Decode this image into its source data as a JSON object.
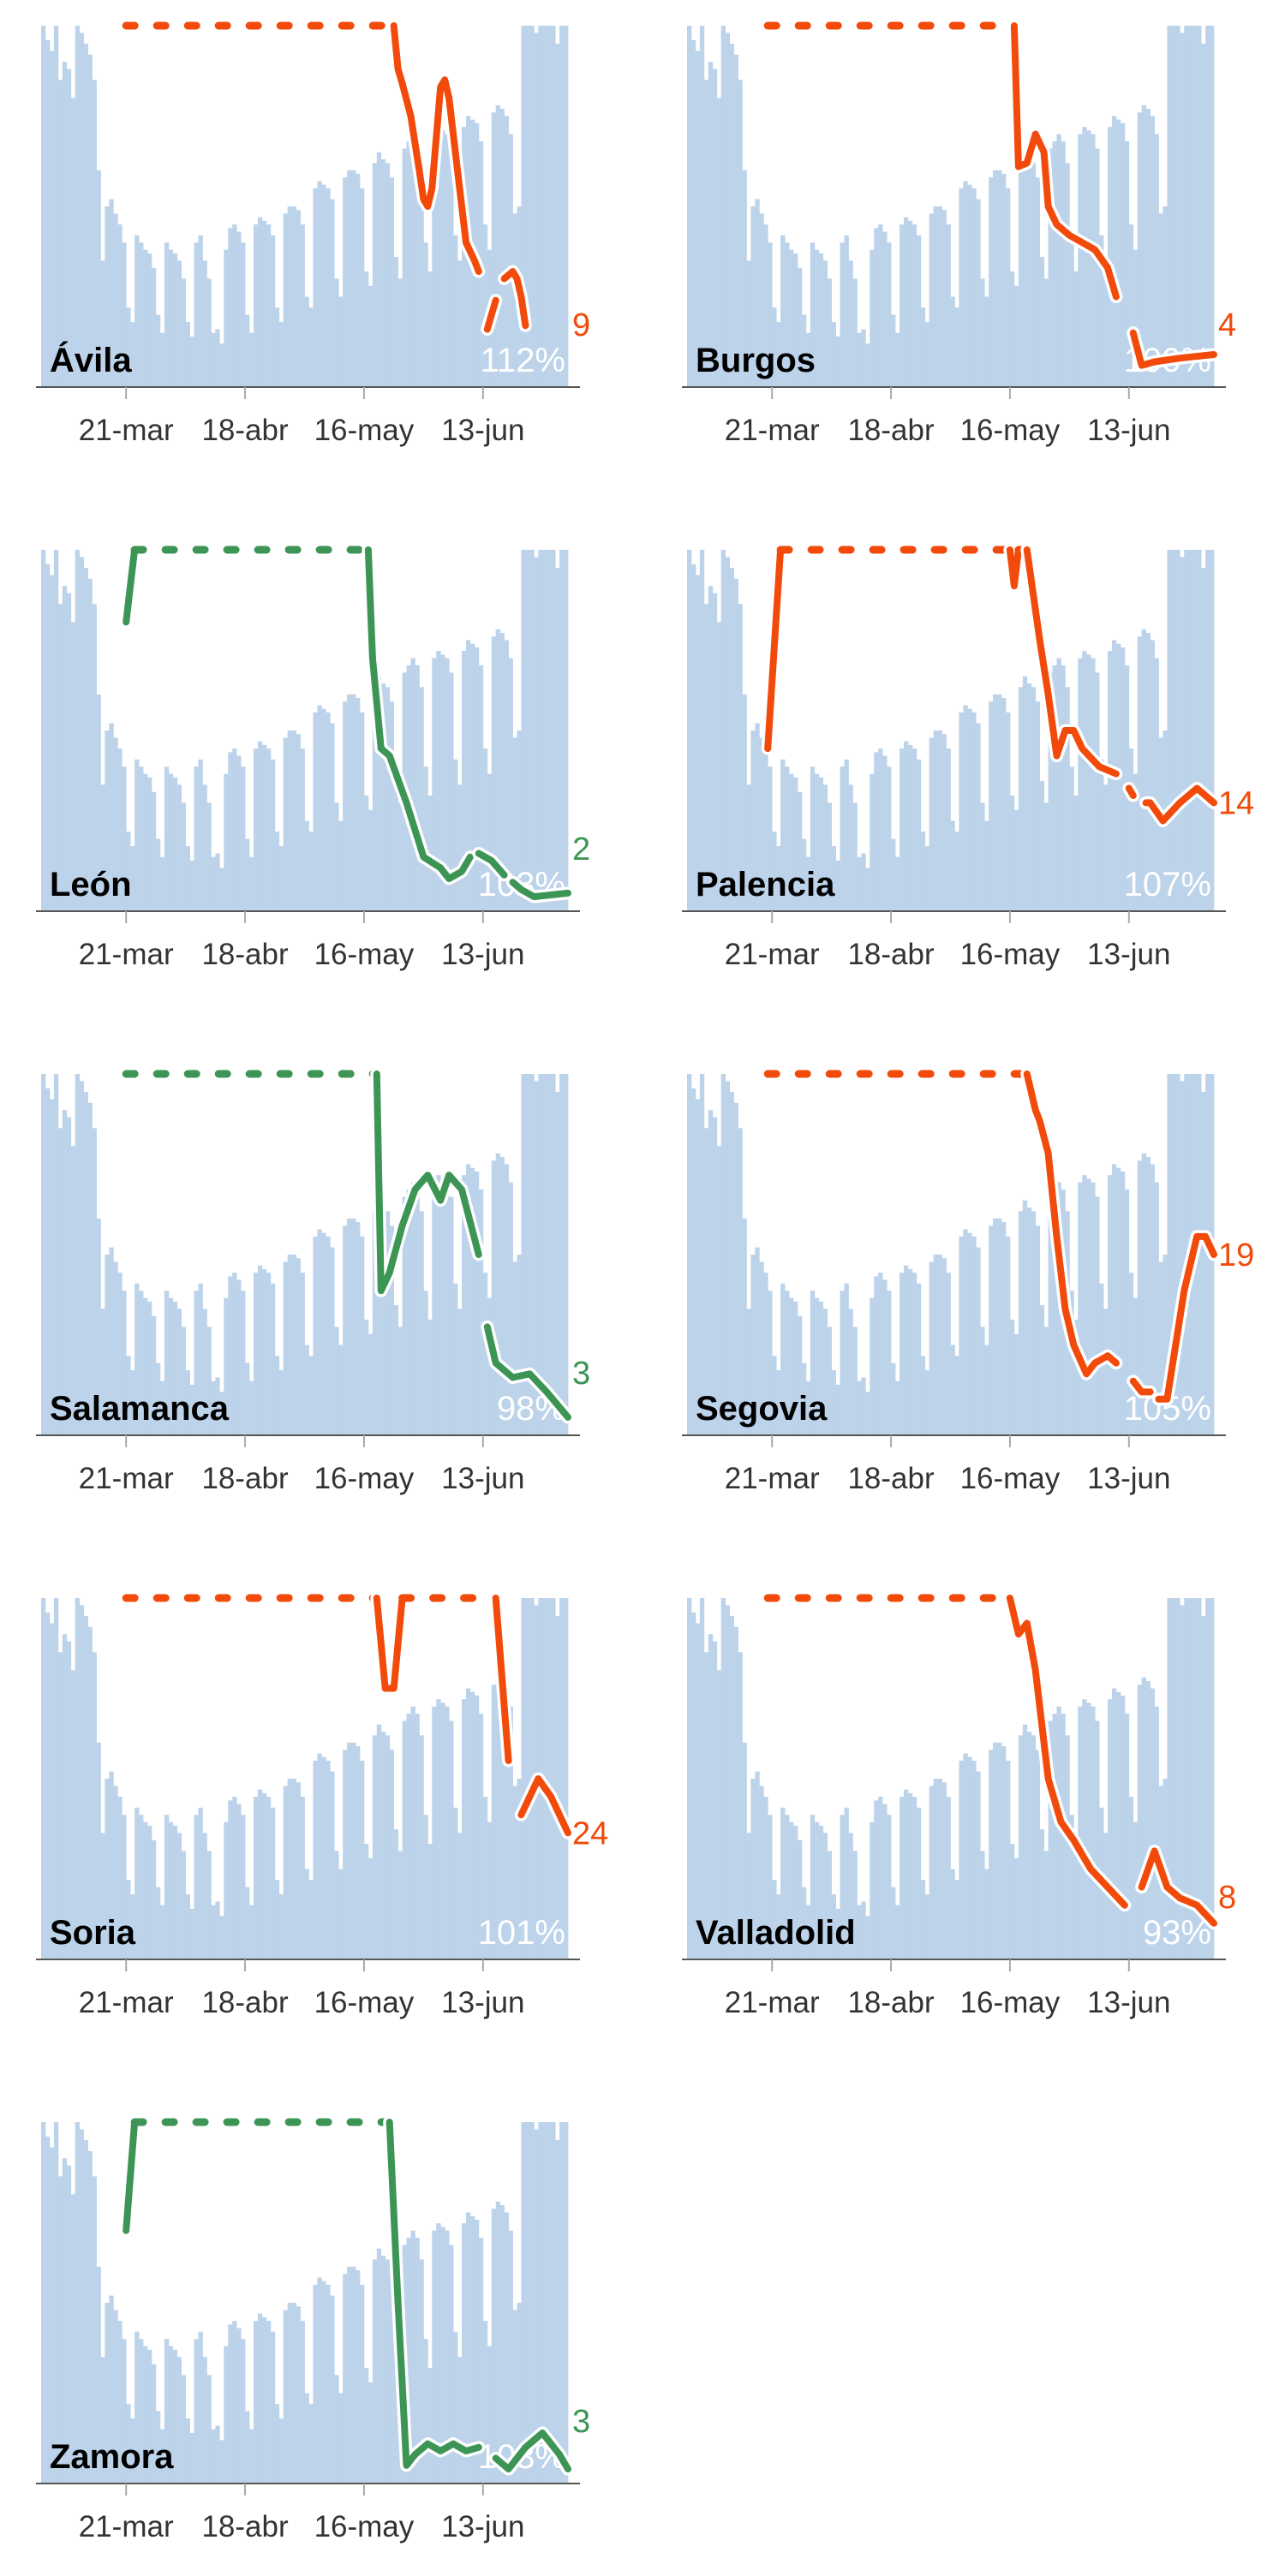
{
  "chart_data": {
    "type": "bar+line small multiples",
    "x_ticks": [
      {
        "day": 20,
        "label": "21-mar"
      },
      {
        "day": 48,
        "label": "18-abr"
      },
      {
        "day": 76,
        "label": "16-may"
      },
      {
        "day": 104,
        "label": "13-jun"
      }
    ],
    "days": 124,
    "y_cap": 100,
    "colors": {
      "bars": "#bcd3ea",
      "up": "#f24a0a",
      "down": "#3d9555",
      "axis": "#555555"
    },
    "bars": [
      100,
      96,
      93,
      100,
      85,
      90,
      88,
      80,
      100,
      98,
      95,
      92,
      85,
      60,
      35,
      50,
      52,
      48,
      45,
      40,
      22,
      18,
      42,
      40,
      38,
      37,
      33,
      20,
      15,
      40,
      38,
      37,
      35,
      30,
      18,
      14,
      40,
      42,
      35,
      30,
      15,
      16,
      12,
      38,
      44,
      45,
      43,
      40,
      20,
      15,
      45,
      47,
      46,
      45,
      42,
      22,
      18,
      48,
      50,
      50,
      49,
      45,
      25,
      22,
      55,
      57,
      56,
      55,
      52,
      30,
      25,
      58,
      60,
      60,
      59,
      55,
      32,
      28,
      62,
      65,
      63,
      62,
      58,
      36,
      30,
      66,
      68,
      70,
      68,
      62,
      40,
      32,
      70,
      72,
      71,
      70,
      66,
      42,
      35,
      72,
      75,
      74,
      73,
      68,
      45,
      38,
      76,
      78,
      77,
      75,
      70,
      48,
      50,
      100,
      100,
      100,
      98,
      100,
      100,
      100,
      100,
      95,
      100,
      100
    ],
    "provinces": [
      {
        "name": "Ávila",
        "pct": "112%",
        "end_label": "9",
        "trend": "up",
        "line": [
          [
            20,
            100
          ],
          [
            83,
            100
          ],
          [
            84,
            88
          ],
          [
            85,
            84
          ],
          [
            87,
            75
          ],
          [
            89,
            60
          ],
          [
            90,
            52
          ],
          [
            91,
            50
          ],
          [
            92,
            55
          ],
          [
            94,
            83
          ],
          [
            95,
            85
          ],
          [
            96,
            80
          ],
          [
            97,
            70
          ],
          [
            99,
            50
          ],
          [
            100,
            40
          ],
          [
            102,
            35
          ],
          [
            103,
            32
          ],
          null,
          [
            105,
            16
          ],
          [
            106,
            20
          ],
          [
            107,
            24
          ],
          null,
          [
            109,
            30
          ],
          [
            110,
            31
          ],
          [
            111,
            32
          ],
          [
            112,
            30
          ],
          [
            113,
            25
          ],
          [
            114,
            17
          ]
        ]
      },
      {
        "name": "Burgos",
        "pct": "100%",
        "end_label": "4",
        "trend": "up",
        "line": [
          [
            19,
            100
          ],
          [
            77,
            100
          ],
          [
            78,
            61
          ],
          [
            80,
            62
          ],
          [
            82,
            70
          ],
          [
            84,
            65
          ],
          [
            85,
            50
          ],
          [
            87,
            45
          ],
          [
            90,
            42
          ],
          [
            93,
            40
          ],
          [
            96,
            38
          ],
          [
            99,
            33
          ],
          [
            101,
            25
          ],
          null,
          [
            105,
            15
          ],
          [
            107,
            6
          ],
          [
            110,
            7
          ],
          [
            116,
            8
          ],
          [
            124,
            9
          ]
        ]
      },
      {
        "name": "León",
        "pct": "103%",
        "end_label": "2",
        "trend": "down",
        "line": [
          [
            20,
            80
          ],
          [
            22,
            100
          ],
          [
            77,
            100
          ],
          [
            78,
            70
          ],
          [
            80,
            45
          ],
          [
            82,
            43
          ],
          [
            86,
            30
          ],
          [
            90,
            15
          ],
          [
            94,
            12
          ],
          [
            96,
            9
          ],
          [
            99,
            11
          ],
          [
            101,
            15
          ],
          null,
          [
            103,
            16
          ],
          [
            106,
            14
          ],
          [
            109,
            10
          ],
          null,
          [
            111,
            8
          ],
          [
            113,
            6
          ],
          [
            116,
            4
          ],
          [
            124,
            5
          ]
        ]
      },
      {
        "name": "Palencia",
        "pct": "107%",
        "end_label": "14",
        "trend": "up",
        "line": [
          [
            19,
            45
          ],
          [
            22,
            100
          ],
          [
            76,
            100
          ],
          [
            77,
            90
          ],
          [
            78,
            100
          ],
          [
            80,
            100
          ],
          [
            83,
            75
          ],
          [
            85,
            60
          ],
          [
            87,
            43
          ],
          [
            89,
            50
          ],
          [
            91,
            50
          ],
          [
            93,
            45
          ],
          [
            97,
            40
          ],
          [
            101,
            38
          ],
          null,
          [
            104,
            34
          ],
          [
            105,
            32
          ],
          null,
          [
            108,
            30
          ],
          [
            109,
            30
          ],
          [
            112,
            25
          ],
          [
            116,
            30
          ],
          [
            120,
            34
          ],
          [
            124,
            30
          ]
        ]
      },
      {
        "name": "Salamanca",
        "pct": "98%",
        "end_label": "3",
        "trend": "down",
        "line": [
          [
            20,
            100
          ],
          [
            79,
            100
          ],
          [
            80,
            40
          ],
          [
            82,
            45
          ],
          [
            85,
            58
          ],
          [
            88,
            68
          ],
          [
            91,
            72
          ],
          [
            94,
            65
          ],
          [
            96,
            72
          ],
          [
            99,
            68
          ],
          [
            103,
            50
          ],
          null,
          [
            105,
            30
          ],
          [
            107,
            20
          ],
          [
            111,
            16
          ],
          [
            115,
            17
          ],
          [
            119,
            12
          ],
          [
            124,
            5
          ]
        ]
      },
      {
        "name": "Segovia",
        "pct": "105%",
        "end_label": "19",
        "trend": "up",
        "line": [
          [
            19,
            100
          ],
          [
            80,
            100
          ],
          [
            82,
            90
          ],
          [
            83,
            87
          ],
          [
            85,
            78
          ],
          [
            87,
            55
          ],
          [
            89,
            35
          ],
          [
            91,
            25
          ],
          [
            94,
            17
          ],
          [
            96,
            20
          ],
          [
            99,
            22
          ],
          [
            101,
            20
          ],
          null,
          [
            105,
            15
          ],
          [
            107,
            12
          ],
          [
            109,
            12
          ],
          null,
          [
            111,
            10
          ],
          [
            113,
            10
          ],
          [
            117,
            40
          ],
          [
            120,
            55
          ],
          [
            122,
            55
          ],
          [
            124,
            50
          ]
        ]
      },
      {
        "name": "Soria",
        "pct": "101%",
        "end_label": "24",
        "trend": "up",
        "line": [
          [
            20,
            100
          ],
          [
            79,
            100
          ],
          [
            81,
            75
          ],
          [
            83,
            75
          ],
          [
            85,
            100
          ],
          [
            107,
            100
          ],
          [
            110,
            55
          ],
          null,
          [
            113,
            40
          ],
          [
            117,
            50
          ],
          [
            120,
            45
          ],
          [
            124,
            35
          ]
        ]
      },
      {
        "name": "Valladolid",
        "pct": "93%",
        "end_label": "8",
        "trend": "up",
        "line": [
          [
            19,
            100
          ],
          [
            76,
            100
          ],
          [
            78,
            90
          ],
          [
            80,
            93
          ],
          [
            82,
            80
          ],
          [
            85,
            50
          ],
          [
            88,
            38
          ],
          [
            91,
            33
          ],
          [
            95,
            25
          ],
          [
            99,
            20
          ],
          [
            103,
            15
          ],
          null,
          [
            107,
            20
          ],
          [
            110,
            30
          ],
          [
            113,
            20
          ],
          [
            116,
            17
          ],
          [
            120,
            15
          ],
          [
            124,
            10
          ]
        ]
      },
      {
        "name": "Zamora",
        "pct": "103%",
        "end_label": "3",
        "trend": "down",
        "line": [
          [
            20,
            70
          ],
          [
            22,
            100
          ],
          [
            82,
            100
          ],
          [
            84,
            50
          ],
          [
            86,
            5
          ],
          [
            88,
            8
          ],
          [
            91,
            11
          ],
          [
            94,
            9
          ],
          [
            97,
            11
          ],
          [
            100,
            9
          ],
          [
            103,
            10
          ],
          null,
          [
            107,
            7
          ],
          [
            110,
            4
          ],
          [
            114,
            10
          ],
          [
            118,
            14
          ],
          [
            122,
            8
          ],
          [
            124,
            4
          ]
        ]
      }
    ]
  }
}
